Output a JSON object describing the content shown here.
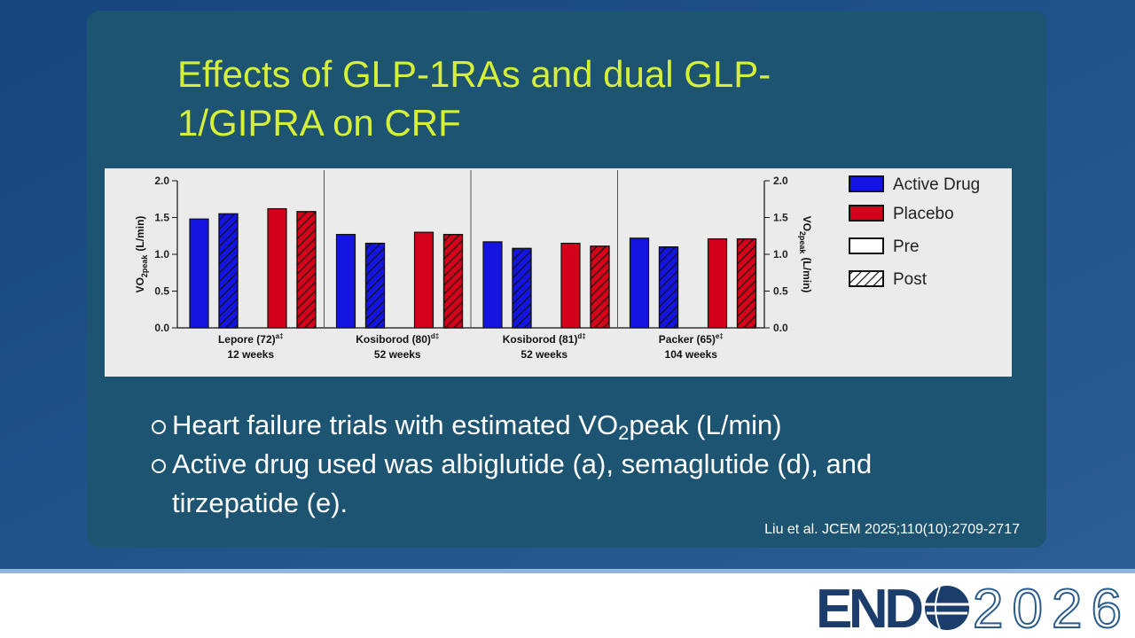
{
  "slide": {
    "title": "Effects of GLP-1RAs and dual GLP-1/GIPRA on CRF",
    "bullets": [
      {
        "text": "Heart failure trials with estimated VO",
        "sub": "2",
        "after": "peak (L/min)"
      },
      {
        "text": "Active drug used was albiglutide (a), semaglutide (d), and tirzepatide (e)."
      }
    ],
    "citation": "Liu et al. JCEM 2025;110(10):2709-2717",
    "logo": {
      "bold": "END",
      "light": "2026"
    }
  },
  "chart_data": {
    "type": "bar",
    "categories": [
      {
        "name": "Lepore (72)",
        "sup": "a‡",
        "duration": "12 weeks"
      },
      {
        "name": "Kosiborod (80)",
        "sup": "d‡",
        "duration": "52 weeks"
      },
      {
        "name": "Kosiborod (81)",
        "sup": "d‡",
        "duration": "52 weeks"
      },
      {
        "name": "Packer (65)",
        "sup": "e‡",
        "duration": "104 weeks"
      }
    ],
    "series": [
      {
        "name": "Active Drug",
        "color": "#1414e0",
        "values": [
          [
            1.48,
            1.55
          ],
          [
            1.27,
            1.15
          ],
          [
            1.17,
            1.08
          ],
          [
            1.22,
            1.1
          ]
        ]
      },
      {
        "name": "Placebo",
        "color": "#d5001a",
        "values": [
          [
            1.62,
            1.58
          ],
          [
            1.3,
            1.27
          ],
          [
            1.15,
            1.11
          ],
          [
            1.21,
            1.21
          ]
        ]
      }
    ],
    "patterns": [
      {
        "name": "Pre",
        "hatch": false
      },
      {
        "name": "Post",
        "hatch": true
      }
    ],
    "ylabel": {
      "main": "VO",
      "sub": "2peak",
      "unit": "(L/min)"
    },
    "y2label": {
      "main": "VO",
      "sub": "2peak",
      "unit": "(L/min)"
    },
    "ylim": [
      0,
      2
    ],
    "yticks": [
      {
        "value": 0,
        "label": "0.0"
      },
      {
        "value": 0.5,
        "label": "0.5"
      },
      {
        "value": 1,
        "label": "1.0"
      },
      {
        "value": 1.5,
        "label": "1.5"
      },
      {
        "value": 2,
        "label": "2.0"
      }
    ],
    "y2lim": [
      0,
      2
    ],
    "y2ticks": [
      {
        "value": 0,
        "label": "0.0"
      },
      {
        "value": 0.5,
        "label": "0.5"
      },
      {
        "value": 1,
        "label": "1.0"
      },
      {
        "value": 1.5,
        "label": "1.5"
      },
      {
        "value": 2,
        "label": "2.0"
      }
    ],
    "grid": false,
    "legend": "right"
  }
}
